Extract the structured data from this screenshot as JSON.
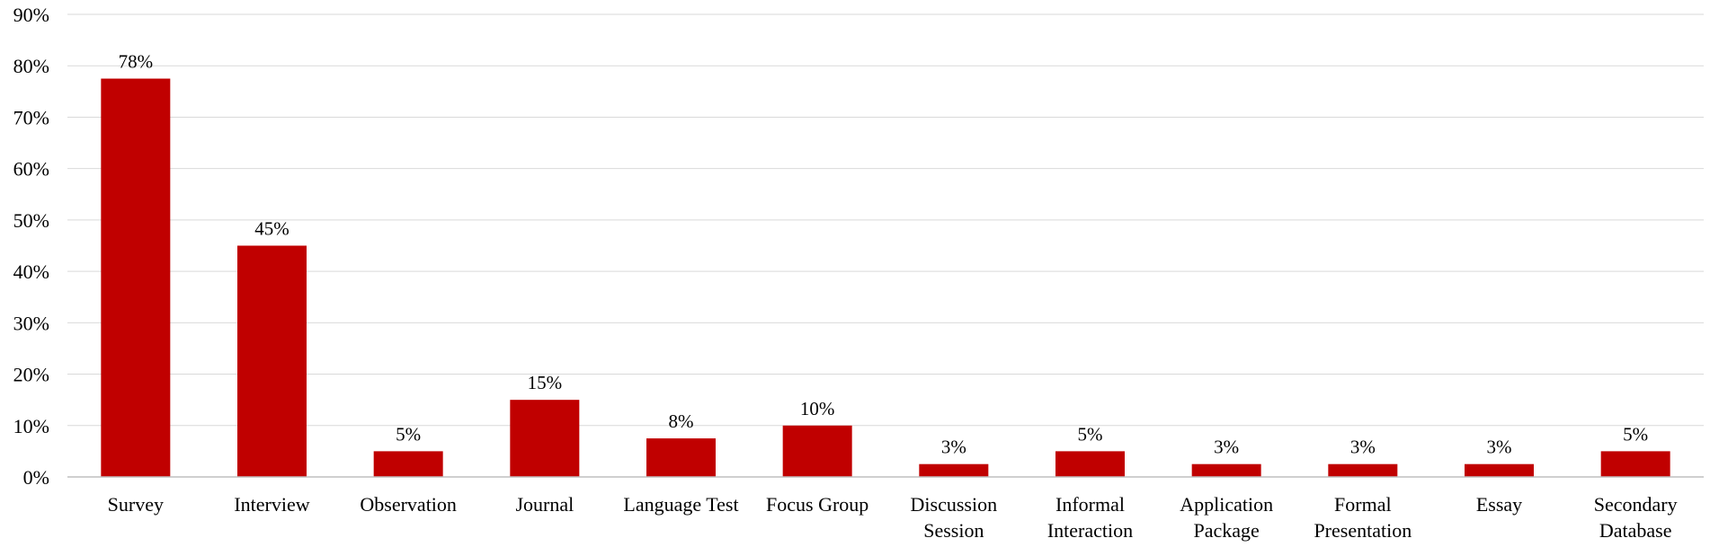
{
  "chart_data": {
    "type": "bar",
    "title": "",
    "xlabel": "",
    "ylabel": "",
    "ylim": [
      0,
      90
    ],
    "yticks": [
      "0%",
      "10%",
      "20%",
      "30%",
      "40%",
      "50%",
      "60%",
      "70%",
      "80%",
      "90%"
    ],
    "grid": true,
    "legend": "none",
    "bar_color": "#c00000",
    "categories": [
      [
        "Survey"
      ],
      [
        "Interview"
      ],
      [
        "Observation"
      ],
      [
        "Journal"
      ],
      [
        "Language Test"
      ],
      [
        "Focus Group"
      ],
      [
        "Discussion",
        "Session"
      ],
      [
        "Informal",
        "Interaction"
      ],
      [
        "Application",
        "Package"
      ],
      [
        "Formal",
        "Presentation"
      ],
      [
        "Essay"
      ],
      [
        "Secondary",
        "Database"
      ]
    ],
    "values": [
      77.5,
      45,
      5,
      15,
      7.5,
      10,
      2.5,
      5,
      2.5,
      2.5,
      2.5,
      5
    ],
    "data_labels": [
      "78%",
      "45%",
      "5%",
      "15%",
      "8%",
      "10%",
      "3%",
      "5%",
      "3%",
      "3%",
      "3%",
      "5%"
    ]
  }
}
